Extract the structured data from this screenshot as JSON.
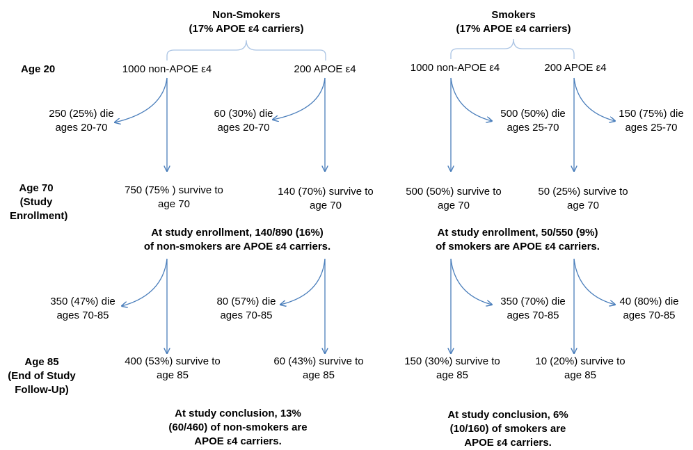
{
  "nonsmokers": {
    "header": [
      "Non-Smokers",
      "(17% APOE ε4 carriers)"
    ],
    "age20_left": "1000 non-APOE ε4",
    "age20_right": "200 APOE ε4",
    "die20_left": [
      "250 (25%) die",
      "ages 20-70"
    ],
    "die20_right": [
      "60 (30%) die",
      "ages 20-70"
    ],
    "survive70_left": [
      "750 (75% ) survive to",
      "age 70"
    ],
    "survive70_right": [
      "140 (70%) survive to",
      "age 70"
    ],
    "enroll": [
      "At study enrollment, 140/890 (16%)",
      "of non-smokers are APOE ε4 carriers."
    ],
    "die70_left": [
      "350 (47%) die",
      "ages 70-85"
    ],
    "die70_right": [
      "80 (57%) die",
      "ages 70-85"
    ],
    "survive85_left": [
      "400 (53%) survive to",
      "age 85"
    ],
    "survive85_right": [
      "60 (43%) survive to",
      "age 85"
    ],
    "conclusion": [
      "At study conclusion, 13%",
      "(60/460) of non-smokers are",
      "APOE ε4 carriers."
    ]
  },
  "smokers": {
    "header": [
      "Smokers",
      "(17% APOE ε4 carriers)"
    ],
    "age20_left": "1000 non-APOE ε4",
    "age20_right": "200 APOE ε4",
    "die20_left": [
      "500 (50%) die",
      "ages 25-70"
    ],
    "die20_right": [
      "150 (75%) die",
      "ages 25-70"
    ],
    "survive70_left": [
      "500 (50%) survive to",
      "age 70"
    ],
    "survive70_right": [
      "50 (25%) survive to",
      "age 70"
    ],
    "enroll": [
      "At study enrollment, 50/550 (9%)",
      "of smokers are APOE ε4 carriers."
    ],
    "die70_left": [
      "350 (70%) die",
      "ages 70-85"
    ],
    "die70_right": [
      "40 (80%) die",
      "ages 70-85"
    ],
    "survive85_left": [
      "150 (30%) survive to",
      "age 85"
    ],
    "survive85_right": [
      "10 (20%) survive to",
      "age 85"
    ],
    "conclusion": [
      "At study conclusion, 6%",
      "(10/160) of smokers are",
      "APOE ε4 carriers."
    ]
  },
  "row_labels": {
    "age20": "Age 20",
    "age70": [
      "Age 70",
      "(Study",
      "Enrollment)"
    ],
    "age85": [
      "Age 85",
      "(End of Study",
      "Follow-Up)"
    ]
  },
  "colors": {
    "arrow": "#4a7ebb",
    "bracket": "#a9c3e3",
    "text": "#000000"
  }
}
